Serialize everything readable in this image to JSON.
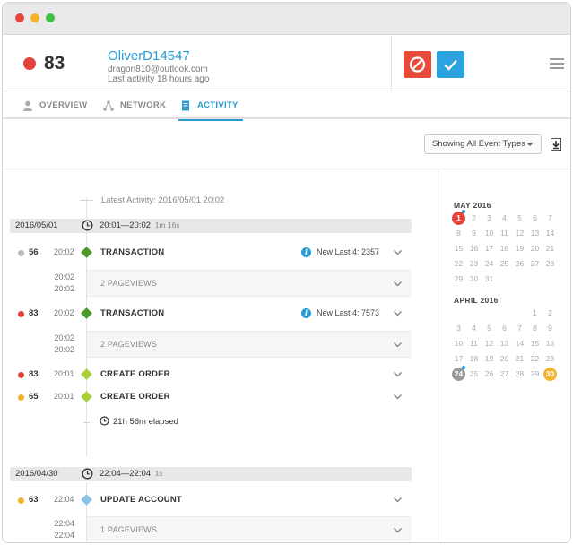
{
  "header": {
    "score": "83",
    "score_color": "#e2423a",
    "username": "OliverD14547",
    "email": "dragon810@outlook.com",
    "last_activity": "Last activity 18 hours ago",
    "block_icon": "block-icon",
    "approve_icon": "check-icon"
  },
  "tabs": [
    {
      "label": "OVERVIEW",
      "icon": "user-icon"
    },
    {
      "label": "NETWORK",
      "icon": "network-icon"
    },
    {
      "label": "ACTIVITY",
      "icon": "document-icon",
      "active": true
    }
  ],
  "toolbar": {
    "filter_value": "Showing All Event Types",
    "download_icon": "download-icon"
  },
  "timeline": {
    "latest": "Latest Activity: 2016/05/01 20:02",
    "days": [
      {
        "date": "2016/05/01",
        "range": "20:01—20:02",
        "duration": "1m 16s"
      },
      {
        "date": "2016/04/30",
        "range": "22:04—22:04",
        "duration": "1s"
      }
    ],
    "events": [
      {
        "score": "56",
        "color": "#b4bcc1",
        "time": "20:02",
        "diamond": "#4c9a2a",
        "title": "TRANSACTION",
        "note": "New Last 4: 2357"
      },
      {
        "score": "83",
        "color": "#e2423a",
        "time": "20:02",
        "diamond": "#4c9a2a",
        "title": "TRANSACTION",
        "note": "New Last 4: 7573"
      },
      {
        "score": "83",
        "color": "#e2423a",
        "time": "20:01",
        "diamond": "#a6d13b",
        "title": "CREATE ORDER"
      },
      {
        "score": "65",
        "color": "#f2b42e",
        "time": "20:01",
        "diamond": "#a6d13b",
        "title": "CREATE ORDER"
      },
      {
        "score": "63",
        "color": "#f2b42e",
        "time": "22:04",
        "diamond": "#8ec1e8",
        "title": "UPDATE ACCOUNT"
      }
    ],
    "pageviews": [
      {
        "label": "2 PAGEVIEWS",
        "t1": "20:02",
        "t2": "20:02"
      },
      {
        "label": "2 PAGEVIEWS",
        "t1": "20:02",
        "t2": "20:02"
      },
      {
        "label": "1 PAGEVIEWS",
        "t1": "22:04",
        "t2": "22:04"
      }
    ],
    "elapsed": "21h 56m elapsed"
  },
  "calendar": {
    "may": {
      "title": "MAY 2016",
      "days": [
        "1",
        "2",
        "3",
        "4",
        "5",
        "6",
        "7",
        "8",
        "9",
        "10",
        "11",
        "12",
        "13",
        "14",
        "15",
        "16",
        "17",
        "18",
        "19",
        "20",
        "21",
        "22",
        "23",
        "24",
        "25",
        "26",
        "27",
        "28",
        "29",
        "30",
        "31"
      ]
    },
    "april": {
      "title": "APRIL 2016",
      "days": [
        "1",
        "2",
        "3",
        "4",
        "5",
        "6",
        "7",
        "8",
        "9",
        "10",
        "11",
        "12",
        "13",
        "14",
        "15",
        "16",
        "17",
        "18",
        "19",
        "20",
        "21",
        "22",
        "23",
        "24",
        "25",
        "26",
        "27",
        "28",
        "29",
        "30"
      ]
    }
  }
}
